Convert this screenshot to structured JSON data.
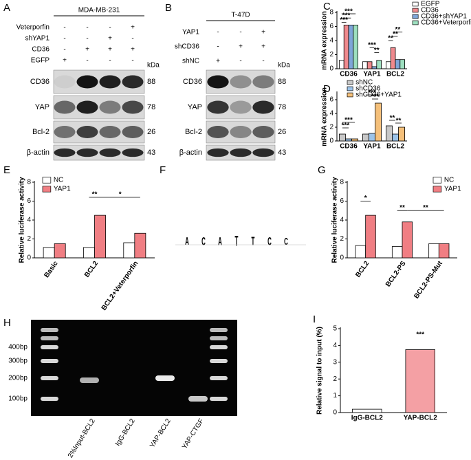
{
  "panels": {
    "A": {
      "letter": "A",
      "title": "MDA-MB-231",
      "rows": [
        {
          "label": "Veterporfin",
          "signs": [
            "-",
            "-",
            "-",
            "+"
          ]
        },
        {
          "label": "shYAP1",
          "signs": [
            "-",
            "-",
            "+",
            "-"
          ]
        },
        {
          "label": "CD36",
          "signs": [
            "-",
            "+",
            "+",
            "+"
          ]
        },
        {
          "label": "EGFP",
          "signs": [
            "+",
            "-",
            "-",
            "-"
          ]
        }
      ],
      "kda_header": "kDa",
      "blots": [
        {
          "label": "CD36",
          "kda": 88
        },
        {
          "label": "YAP",
          "kda": 78
        },
        {
          "label": "Bcl-2",
          "kda": 26
        },
        {
          "label": "β-actin",
          "kda": 43
        }
      ]
    },
    "B": {
      "letter": "B",
      "title": "T-47D",
      "rows": [
        {
          "label": "YAP1",
          "signs": [
            "-",
            "-",
            "+"
          ]
        },
        {
          "label": "shCD36",
          "signs": [
            "-",
            "+",
            "+"
          ]
        },
        {
          "label": "shNC",
          "signs": [
            "+",
            "-",
            "-"
          ]
        }
      ],
      "kda_header": "kDa",
      "blots": [
        {
          "label": "CD36",
          "kda": 88
        },
        {
          "label": "YAP",
          "kda": 78
        },
        {
          "label": "Bcl-2",
          "kda": 26
        },
        {
          "label": "β-actin",
          "kda": 43
        }
      ]
    },
    "F": {
      "letter": "F",
      "logo": [
        "A",
        "C",
        "A",
        "T",
        "T",
        "C",
        "C"
      ]
    },
    "H": {
      "letter": "H",
      "markers": [
        "400bp",
        "300bp",
        "200bp",
        "100bp"
      ],
      "lanes": [
        "2%Input-BCL2",
        "IgG-BCL2",
        "YAP-BCL2",
        "YAP-CTGF"
      ]
    }
  },
  "chart_data": [
    {
      "type": "bar",
      "letter": "C",
      "ylabel": "mRNA expression",
      "categories": [
        "CD36",
        "YAP1",
        "BCL2"
      ],
      "series": [
        {
          "name": "EGFP",
          "color": "#ffffff",
          "values": [
            1.2,
            1.0,
            1.0
          ]
        },
        {
          "name": "CD36",
          "color": "#f08a8e",
          "values": [
            6.2,
            1.0,
            3.0
          ]
        },
        {
          "name": "CD36+shYAP1",
          "color": "#7fa6d9",
          "values": [
            6.2,
            0.3,
            1.3
          ]
        },
        {
          "name": "CD36+Veterporfin",
          "color": "#9ee0c0",
          "values": [
            6.2,
            1.2,
            1.3
          ]
        }
      ],
      "ylim": [
        0,
        8
      ],
      "yticks": [
        0,
        2,
        4,
        6,
        8
      ],
      "annotations": [
        "***",
        "***",
        "***",
        "***",
        "**",
        "**",
        "**",
        "**"
      ]
    },
    {
      "type": "bar",
      "letter": "D",
      "ylabel": "mRNA expression",
      "categories": [
        "CD36",
        "YAP1",
        "BCL2"
      ],
      "series": [
        {
          "name": "shNC",
          "color": "#c8c8c8",
          "values": [
            1.0,
            1.0,
            2.2
          ]
        },
        {
          "name": "shCD36",
          "color": "#9cc3e8",
          "values": [
            0.3,
            1.1,
            1.0
          ]
        },
        {
          "name": "shCD36+YAP1",
          "color": "#f5c07a",
          "values": [
            0.3,
            5.5,
            2.0
          ]
        }
      ],
      "ylim": [
        0,
        7
      ],
      "yticks": [
        0,
        2,
        4,
        6
      ],
      "annotations": [
        "***",
        "***",
        "***",
        "***",
        "**",
        "**"
      ]
    },
    {
      "type": "bar",
      "letter": "E",
      "ylabel": "Relative luciferase activity",
      "categories": [
        "Basic",
        "BCL2",
        "BCL2+Veterporfin"
      ],
      "series": [
        {
          "name": "NC",
          "color": "#ffffff",
          "values": [
            1.1,
            1.1,
            1.6
          ]
        },
        {
          "name": "YAP1",
          "color": "#f07e83",
          "values": [
            1.5,
            4.5,
            2.6
          ]
        }
      ],
      "ylim": [
        0,
        8
      ],
      "yticks": [
        0,
        2,
        4,
        6,
        8
      ],
      "annotations": [
        "**",
        "*"
      ]
    },
    {
      "type": "bar",
      "letter": "G",
      "ylabel": "Relative luciferase activity",
      "categories": [
        "BCL2",
        "BCL2-PS",
        "BCL2-PS-Mut"
      ],
      "series": [
        {
          "name": "NC",
          "color": "#ffffff",
          "values": [
            1.3,
            1.2,
            1.5
          ]
        },
        {
          "name": "YAP1",
          "color": "#f07e83",
          "values": [
            4.5,
            3.8,
            1.5
          ]
        }
      ],
      "ylim": [
        0,
        8
      ],
      "yticks": [
        0,
        2,
        4,
        6,
        8
      ],
      "annotations": [
        "*",
        "**",
        "**"
      ]
    },
    {
      "type": "bar",
      "letter": "I",
      "ylabel": "Relative signal to input (%)",
      "categories": [
        "IgG-BCL2",
        "YAP-BCL2"
      ],
      "values": [
        0.2,
        3.75
      ],
      "colors": [
        "#ffffff",
        "#f4a0a4"
      ],
      "ylim": [
        0,
        5
      ],
      "yticks": [
        0,
        1,
        2,
        3,
        4,
        5
      ],
      "annotations": [
        "***"
      ]
    }
  ]
}
